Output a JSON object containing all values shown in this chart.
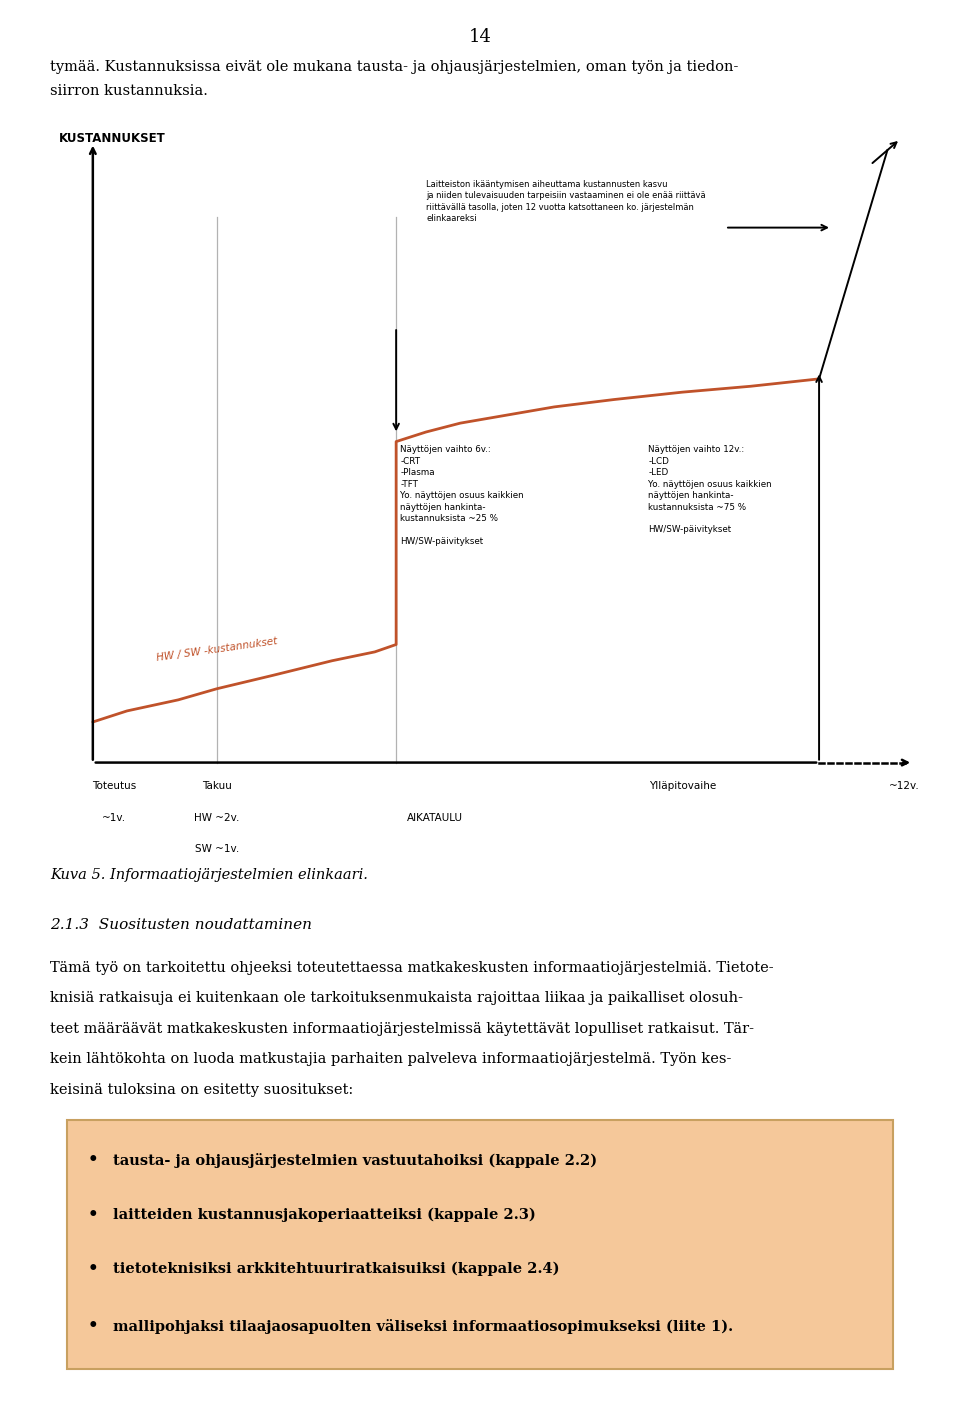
{
  "page_number": "14",
  "intro_text_line1": "tymää. Kustannuksissa eivät ole mukana tausta- ja ohjausjärjestelmien, oman työn ja tiedon-",
  "intro_text_line2": "siirron kustannuksia.",
  "axis_ylabel": "KUSTANNUKSET",
  "curve_color": "#C0522A",
  "hw_sw_label": "HW / SW -kustannukset",
  "annotation_top": "Laitteiston ikääntymisen aiheuttama kustannusten kasvu\nja niiden tulevaisuuden tarpeisiin vastaaminen ei ole enää riittävä\nriittävällä tasolla, joten 12 vuotta katsottaneen ko. järjestelmän\nelinkaareksi",
  "annotation_6v_title": "Näyttöjen vaihto 6v.:",
  "annotation_6v_body": "-CRT\n-Plasma\n-TFT\nYo. näyttöjen osuus kaikkien\nnäyttöjen hankinta-\nkustannuksista ~25 %\n\nHW/SW-päivitykset",
  "annotation_12v_title": "Näyttöjen vaihto 12v.:",
  "annotation_12v_body": "-LCD\n-LED\nYo. näyttöjen osuus kaikkien\nnäyttöjen hankinta-\nkustannuksista ~75 %\n\nHW/SW-päivitykset",
  "kuva_caption": "Kuva 5. Informaatiojärjestelmien elinkaari.",
  "section_title": "2.1.3  Suositusten noudattaminen",
  "body_lines": [
    "Tämä työ on tarkoitettu ohjeeksi toteutettaessa matkakeskusten informaatiojärjestelmiä. Tietote-",
    "knisiä ratkaisuja ei kuitenkaan ole tarkoituksenmukaista rajoittaa liikaa ja paikalliset olosuh-",
    "teet määräävät matkakeskusten informaatiojärjestelmissä käytettävät lopulliset ratkaisut. Tär-",
    "kein lähtökohta on luoda matkustajia parhaiten palveleva informaatiojärjestelmä. Työn kes-",
    "keisinä tuloksina on esitetty suositukset:"
  ],
  "bullet_items": [
    "tausta- ja ohjausjärjestelmien vastuutahoiksi (kappale 2.2)",
    "laitteiden kustannusjakoperiaatteiksi (kappale 2.3)",
    "tietoteknisiksi arkkitehtuuriratkaisuiksi (kappale 2.4)",
    "mallipohjaksi tilaajaosapuolten väliseksi informaatiosopimukseksi (liite 1)."
  ],
  "box_color": "#F5C89A",
  "box_border_color": "#C8A060"
}
